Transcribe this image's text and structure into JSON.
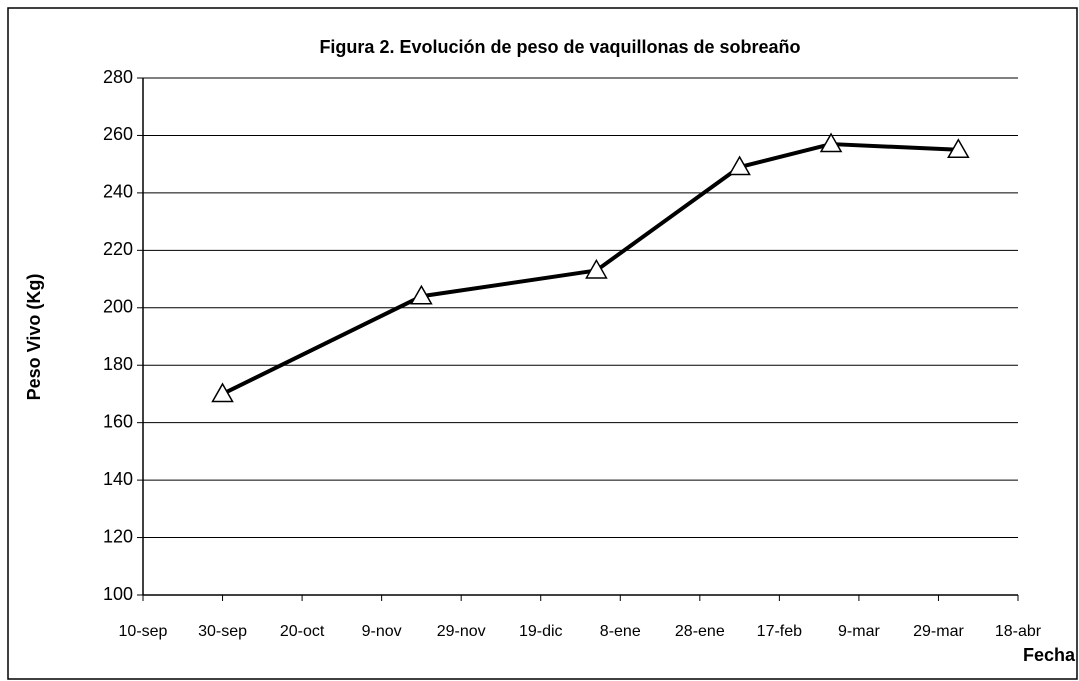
{
  "chart_data": {
    "type": "line",
    "title": "Figura 2. Evolución de peso de vaquillonas de sobreaño",
    "x_label": "Fecha",
    "y_label": "Peso Vivo (Kg)",
    "x": [
      20,
      70,
      114,
      150,
      173,
      205
    ],
    "series": [
      {
        "name": "Peso Vivo",
        "color": "#000000",
        "values": [
          170,
          204,
          213,
          249,
          257,
          255
        ]
      }
    ],
    "xlim": [
      0,
      220
    ],
    "xticks": [
      {
        "value": 0,
        "label": "10-sep"
      },
      {
        "value": 20,
        "label": "30-sep"
      },
      {
        "value": 40,
        "label": "20-oct"
      },
      {
        "value": 60,
        "label": "9-nov"
      },
      {
        "value": 80,
        "label": "29-nov"
      },
      {
        "value": 100,
        "label": "19-dic"
      },
      {
        "value": 120,
        "label": "8-ene"
      },
      {
        "value": 140,
        "label": "28-ene"
      },
      {
        "value": 160,
        "label": "17-feb"
      },
      {
        "value": 180,
        "label": "9-mar"
      },
      {
        "value": 200,
        "label": "29-mar"
      },
      {
        "value": 220,
        "label": "18-abr"
      }
    ],
    "ylim": [
      100,
      280
    ],
    "yticks": [
      100,
      120,
      140,
      160,
      180,
      200,
      220,
      240,
      260,
      280
    ],
    "grid": true
  }
}
